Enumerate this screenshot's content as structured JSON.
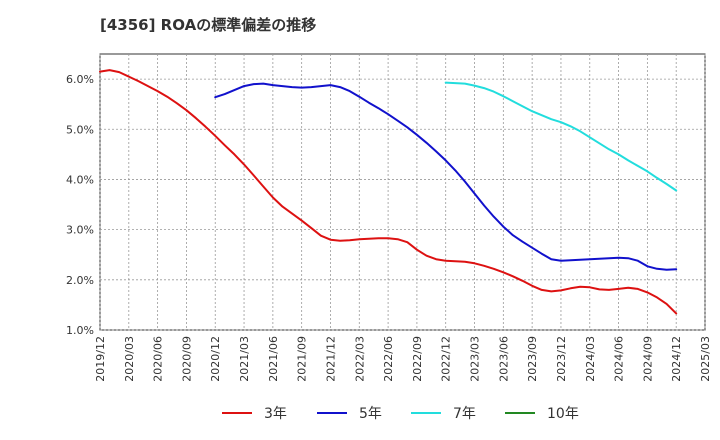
{
  "chart_data": {
    "type": "line",
    "title": "[4356]  ROAの標準偏差の推移",
    "xlabel": "",
    "ylabel": "",
    "y_unit": "%",
    "ylim": [
      1.0,
      6.5
    ],
    "yticks": [
      "1.0%",
      "2.0%",
      "3.0%",
      "4.0%",
      "5.0%",
      "6.0%"
    ],
    "yticks_values": [
      1,
      2,
      3,
      4,
      5,
      6
    ],
    "xlim": [
      "2019-12",
      "2025-03"
    ],
    "xticks": [
      "2019/12",
      "2020/03",
      "2020/06",
      "2020/09",
      "2020/12",
      "2021/03",
      "2021/06",
      "2021/09",
      "2021/12",
      "2022/03",
      "2022/06",
      "2022/09",
      "2022/12",
      "2023/03",
      "2023/06",
      "2023/09",
      "2023/12",
      "2024/03",
      "2024/06",
      "2024/09",
      "2024/12",
      "2025/03"
    ],
    "grid": true,
    "legend_position": "bottom",
    "series": [
      {
        "name": "3年",
        "color": "#dd1111",
        "points": [
          [
            "2019-12",
            6.15
          ],
          [
            "2020-01",
            6.18
          ],
          [
            "2020-02",
            6.14
          ],
          [
            "2020-03",
            6.05
          ],
          [
            "2020-04",
            5.96
          ],
          [
            "2020-05",
            5.86
          ],
          [
            "2020-06",
            5.76
          ],
          [
            "2020-07",
            5.65
          ],
          [
            "2020-08",
            5.52
          ],
          [
            "2020-09",
            5.38
          ],
          [
            "2020-10",
            5.22
          ],
          [
            "2020-11",
            5.05
          ],
          [
            "2020-12",
            4.87
          ],
          [
            "2021-01",
            4.68
          ],
          [
            "2021-02",
            4.5
          ],
          [
            "2021-03",
            4.3
          ],
          [
            "2021-04",
            4.08
          ],
          [
            "2021-05",
            3.86
          ],
          [
            "2021-06",
            3.64
          ],
          [
            "2021-07",
            3.46
          ],
          [
            "2021-08",
            3.32
          ],
          [
            "2021-09",
            3.18
          ],
          [
            "2021-10",
            3.03
          ],
          [
            "2021-11",
            2.88
          ],
          [
            "2021-12",
            2.8
          ],
          [
            "2022-01",
            2.78
          ],
          [
            "2022-02",
            2.79
          ],
          [
            "2022-03",
            2.81
          ],
          [
            "2022-04",
            2.82
          ],
          [
            "2022-05",
            2.83
          ],
          [
            "2022-06",
            2.83
          ],
          [
            "2022-07",
            2.81
          ],
          [
            "2022-08",
            2.75
          ],
          [
            "2022-09",
            2.6
          ],
          [
            "2022-10",
            2.48
          ],
          [
            "2022-11",
            2.41
          ],
          [
            "2022-12",
            2.38
          ],
          [
            "2023-01",
            2.37
          ],
          [
            "2023-02",
            2.36
          ],
          [
            "2023-03",
            2.33
          ],
          [
            "2023-04",
            2.28
          ],
          [
            "2023-05",
            2.22
          ],
          [
            "2023-06",
            2.15
          ],
          [
            "2023-07",
            2.07
          ],
          [
            "2023-08",
            1.98
          ],
          [
            "2023-09",
            1.88
          ],
          [
            "2023-10",
            1.8
          ],
          [
            "2023-11",
            1.77
          ],
          [
            "2023-12",
            1.79
          ],
          [
            "2024-01",
            1.83
          ],
          [
            "2024-02",
            1.86
          ],
          [
            "2024-03",
            1.85
          ],
          [
            "2024-04",
            1.81
          ],
          [
            "2024-05",
            1.8
          ],
          [
            "2024-06",
            1.82
          ],
          [
            "2024-07",
            1.84
          ],
          [
            "2024-08",
            1.82
          ],
          [
            "2024-09",
            1.75
          ],
          [
            "2024-10",
            1.65
          ],
          [
            "2024-11",
            1.52
          ],
          [
            "2024-12",
            1.33
          ]
        ]
      },
      {
        "name": "5年",
        "color": "#1111cc",
        "points": [
          [
            "2020-12",
            5.64
          ],
          [
            "2021-01",
            5.7
          ],
          [
            "2021-02",
            5.78
          ],
          [
            "2021-03",
            5.86
          ],
          [
            "2021-04",
            5.9
          ],
          [
            "2021-05",
            5.91
          ],
          [
            "2021-06",
            5.88
          ],
          [
            "2021-07",
            5.86
          ],
          [
            "2021-08",
            5.84
          ],
          [
            "2021-09",
            5.83
          ],
          [
            "2021-10",
            5.84
          ],
          [
            "2021-11",
            5.86
          ],
          [
            "2021-12",
            5.88
          ],
          [
            "2022-01",
            5.84
          ],
          [
            "2022-02",
            5.76
          ],
          [
            "2022-03",
            5.65
          ],
          [
            "2022-04",
            5.53
          ],
          [
            "2022-05",
            5.42
          ],
          [
            "2022-06",
            5.3
          ],
          [
            "2022-07",
            5.17
          ],
          [
            "2022-08",
            5.04
          ],
          [
            "2022-09",
            4.89
          ],
          [
            "2022-10",
            4.73
          ],
          [
            "2022-11",
            4.56
          ],
          [
            "2022-12",
            4.38
          ],
          [
            "2023-01",
            4.18
          ],
          [
            "2023-02",
            3.96
          ],
          [
            "2023-03",
            3.72
          ],
          [
            "2023-04",
            3.48
          ],
          [
            "2023-05",
            3.26
          ],
          [
            "2023-06",
            3.06
          ],
          [
            "2023-07",
            2.89
          ],
          [
            "2023-08",
            2.76
          ],
          [
            "2023-09",
            2.64
          ],
          [
            "2023-10",
            2.52
          ],
          [
            "2023-11",
            2.41
          ],
          [
            "2023-12",
            2.38
          ],
          [
            "2024-01",
            2.39
          ],
          [
            "2024-02",
            2.4
          ],
          [
            "2024-03",
            2.41
          ],
          [
            "2024-04",
            2.42
          ],
          [
            "2024-05",
            2.43
          ],
          [
            "2024-06",
            2.44
          ],
          [
            "2024-07",
            2.43
          ],
          [
            "2024-08",
            2.38
          ],
          [
            "2024-09",
            2.27
          ],
          [
            "2024-10",
            2.22
          ],
          [
            "2024-11",
            2.2
          ],
          [
            "2024-12",
            2.21
          ]
        ]
      },
      {
        "name": "7年",
        "color": "#22dddd",
        "points": [
          [
            "2022-12",
            5.93
          ],
          [
            "2023-01",
            5.92
          ],
          [
            "2023-02",
            5.91
          ],
          [
            "2023-03",
            5.87
          ],
          [
            "2023-04",
            5.82
          ],
          [
            "2023-05",
            5.75
          ],
          [
            "2023-06",
            5.66
          ],
          [
            "2023-07",
            5.56
          ],
          [
            "2023-08",
            5.46
          ],
          [
            "2023-09",
            5.36
          ],
          [
            "2023-10",
            5.28
          ],
          [
            "2023-11",
            5.2
          ],
          [
            "2023-12",
            5.14
          ],
          [
            "2024-01",
            5.06
          ],
          [
            "2024-02",
            4.96
          ],
          [
            "2024-03",
            4.84
          ],
          [
            "2024-04",
            4.72
          ],
          [
            "2024-05",
            4.6
          ],
          [
            "2024-06",
            4.5
          ],
          [
            "2024-07",
            4.38
          ],
          [
            "2024-08",
            4.27
          ],
          [
            "2024-09",
            4.16
          ],
          [
            "2024-10",
            4.03
          ],
          [
            "2024-11",
            3.91
          ],
          [
            "2024-12",
            3.78
          ]
        ]
      },
      {
        "name": "10年",
        "color": "#228822",
        "points": []
      }
    ]
  }
}
